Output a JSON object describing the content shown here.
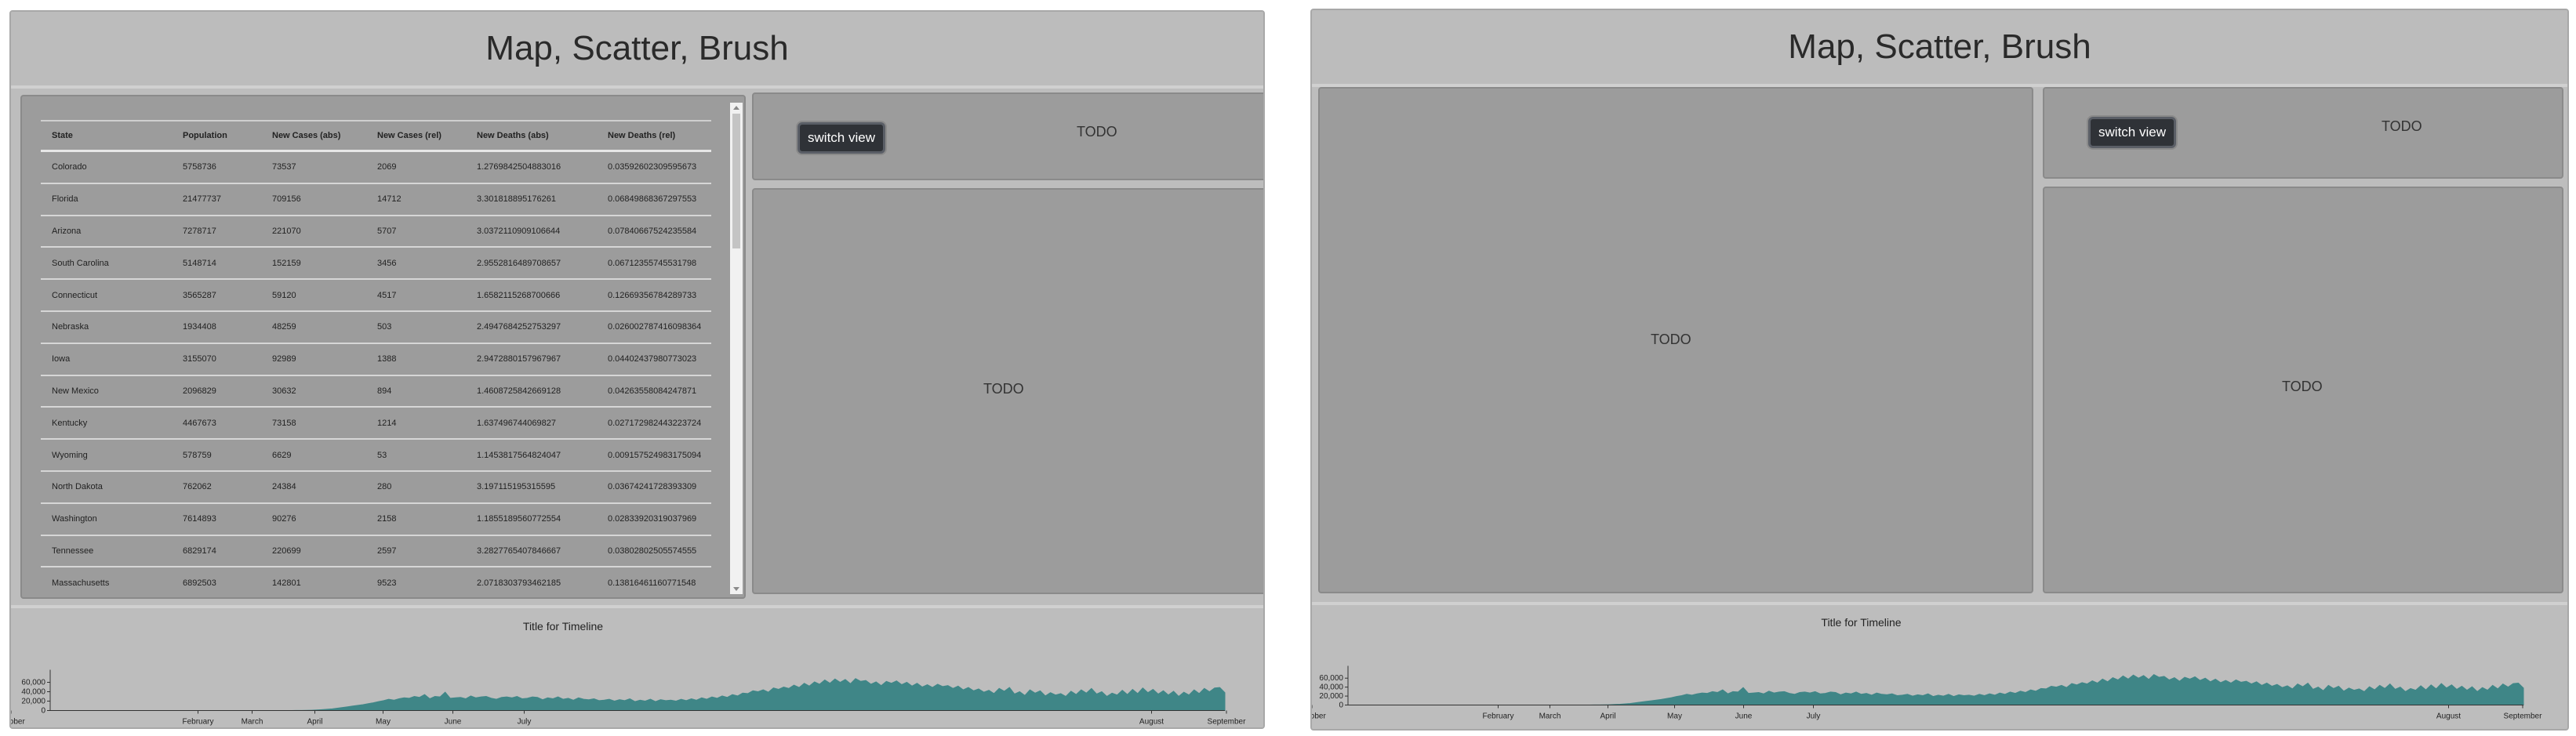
{
  "title": "Map, Scatter, Brush",
  "switch_label": "switch view",
  "todo": "TODO",
  "table": {
    "headers": [
      "State",
      "Population",
      "New Cases (abs)",
      "New Cases (rel)",
      "New Deaths (abs)",
      "New Deaths (rel)"
    ],
    "rows": [
      [
        "Colorado",
        "5758736",
        "73537",
        "2069",
        "1.2769842504883016",
        "0.03592602309595673"
      ],
      [
        "Florida",
        "21477737",
        "709156",
        "14712",
        "3.301818895176261",
        "0.06849868367297553"
      ],
      [
        "Arizona",
        "7278717",
        "221070",
        "5707",
        "3.0372110909106644",
        "0.07840667524235584"
      ],
      [
        "South Carolina",
        "5148714",
        "152159",
        "3456",
        "2.9552816489708657",
        "0.06712355745531798"
      ],
      [
        "Connecticut",
        "3565287",
        "59120",
        "4517",
        "1.6582115268700666",
        "0.12669356784289733"
      ],
      [
        "Nebraska",
        "1934408",
        "48259",
        "503",
        "2.4947684252753297",
        "0.026002787416098364"
      ],
      [
        "Iowa",
        "3155070",
        "92989",
        "1388",
        "2.9472880157967967",
        "0.04402437980773023"
      ],
      [
        "New Mexico",
        "2096829",
        "30632",
        "894",
        "1.4608725842669128",
        "0.04263558084247871"
      ],
      [
        "Kentucky",
        "4467673",
        "73158",
        "1214",
        "1.637496744069827",
        "0.027172982443223724"
      ],
      [
        "Wyoming",
        "578759",
        "6629",
        "53",
        "1.1453817564824047",
        "0.009157524983175094"
      ],
      [
        "North Dakota",
        "762062",
        "24384",
        "280",
        "3.197115195315595",
        "0.03674241728393309"
      ],
      [
        "Washington",
        "7614893",
        "90276",
        "2158",
        "1.1855189560772554",
        "0.02833920319037969"
      ],
      [
        "Tennessee",
        "6829174",
        "220699",
        "2597",
        "3.2827765407846667",
        "0.03802802505574555"
      ],
      [
        "Massachusetts",
        "6892503",
        "142801",
        "9523",
        "2.0718303793462185",
        "0.13816461160771548"
      ]
    ]
  },
  "chart_data": {
    "type": "area",
    "title": "Title for Timeline",
    "xlabel": "",
    "ylabel": "",
    "ylim": [
      0,
      70000
    ],
    "y_ticks": [
      "0",
      "20,000",
      "40,000",
      "60,000"
    ],
    "x_ticks": [
      "February",
      "March",
      "April",
      "May",
      "June",
      "July",
      "August",
      "September",
      "October"
    ],
    "color": "#3f8687",
    "series": [
      {
        "values": [
          0,
          0,
          0,
          0,
          0,
          0,
          0,
          0,
          0,
          0,
          0,
          0,
          0,
          0,
          0,
          0,
          0,
          0,
          0,
          0,
          0,
          0,
          0,
          0,
          0,
          0,
          0,
          0,
          0,
          0,
          0,
          0,
          0,
          0,
          0,
          0,
          0,
          0,
          0,
          0,
          0,
          0,
          0,
          0,
          0,
          0,
          0,
          0,
          100,
          200,
          400,
          700,
          1200,
          1800,
          2600,
          3500,
          5000,
          6500,
          8000,
          9500,
          11000,
          12500,
          14500,
          16500,
          19000,
          21000,
          24000,
          22000,
          25000,
          27000,
          26000,
          30000,
          28000,
          34000,
          25000,
          30000,
          29000,
          39000,
          26000,
          27000,
          28000,
          25000,
          31000,
          27000,
          29000,
          30000,
          26000,
          24000,
          28000,
          29000,
          27000,
          30000,
          25000,
          26000,
          29000,
          28000,
          23000,
          27000,
          25000,
          29000,
          24000,
          26000,
          22000,
          27000,
          24000,
          23000,
          25000,
          21000,
          22000,
          24000,
          20000,
          23000,
          21000,
          25000,
          19000,
          22000,
          20000,
          24000,
          19000,
          23000,
          21000,
          22000,
          20000,
          24000,
          21000,
          25000,
          22000,
          27000,
          24000,
          29000,
          26000,
          31000,
          28000,
          34000,
          31000,
          37000,
          36000,
          42000,
          40000,
          44000,
          39000,
          48000,
          45000,
          50000,
          47000,
          54000,
          49000,
          58000,
          52000,
          61000,
          56000,
          65000,
          58000,
          67000,
          60000,
          66000,
          57000,
          68000,
          62000,
          64000,
          56000,
          61000,
          53000,
          62000,
          58000,
          63000,
          55000,
          60000,
          52000,
          58000,
          50000,
          55000,
          49000,
          56000,
          51000,
          53000,
          47000,
          52000,
          44000,
          49000,
          42000,
          46000,
          39000,
          43000,
          36000,
          47000,
          41000,
          49000,
          35000,
          40000,
          32000,
          44000,
          37000,
          42000,
          31000,
          38000,
          33000,
          36000,
          30000,
          41000,
          34000,
          44000,
          37000,
          47000,
          35000,
          40000,
          30000,
          37000,
          33000,
          43000,
          34000,
          45000,
          36000,
          48000,
          38000,
          45000,
          35000,
          42000,
          33000,
          41000,
          30000,
          39000,
          33000,
          44000,
          36000,
          47000,
          40000,
          48000,
          49000,
          38000
        ]
      }
    ]
  }
}
